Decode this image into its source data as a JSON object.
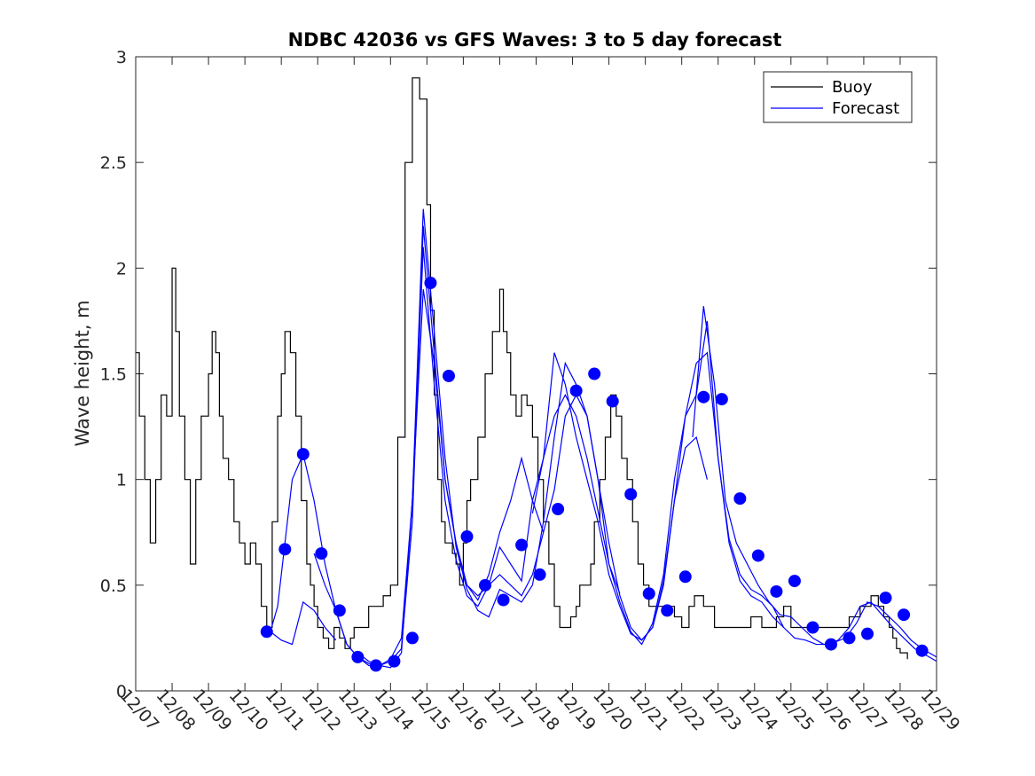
{
  "chart_data": {
    "type": "line",
    "title": "NDBC 42036 vs GFS Waves: 3 to 5 day forecast",
    "xlabel": "",
    "ylabel": "Wave height, m",
    "xlim": [
      0,
      22
    ],
    "ylim": [
      0,
      3
    ],
    "x_unit": "days since 12/07 00:00",
    "x_tick_values": [
      0,
      1,
      2,
      3,
      4,
      5,
      6,
      7,
      8,
      9,
      10,
      11,
      12,
      13,
      14,
      15,
      16,
      17,
      18,
      19,
      20,
      21,
      22
    ],
    "x_tick_labels": [
      "12/07",
      "12/08",
      "12/09",
      "12/10",
      "12/11",
      "12/12",
      "12/13",
      "12/14",
      "12/15",
      "12/16",
      "12/17",
      "12/18",
      "12/19",
      "12/20",
      "12/21",
      "12/22",
      "12/23",
      "12/24",
      "12/25",
      "12/26",
      "12/27",
      "12/28",
      "12/29"
    ],
    "y_tick_values": [
      0,
      0.5,
      1,
      1.5,
      2,
      2.5,
      3
    ],
    "y_tick_labels": [
      "0",
      "0.5",
      "1",
      "1.5",
      "2",
      "2.5",
      "3"
    ],
    "legend": {
      "position": "top-right",
      "entries": [
        {
          "label": "Buoy",
          "color": "#000000"
        },
        {
          "label": "Forecast",
          "color": "#0000ff"
        }
      ]
    },
    "colors": {
      "buoy": "#000000",
      "forecast": "#0000ff",
      "axes": "#262626"
    },
    "buoy": {
      "name": "Buoy",
      "x": [
        0,
        0.1,
        0.25,
        0.4,
        0.55,
        0.7,
        0.85,
        1.0,
        1.1,
        1.2,
        1.35,
        1.5,
        1.65,
        1.8,
        2.0,
        2.1,
        2.2,
        2.3,
        2.4,
        2.55,
        2.7,
        2.85,
        3.0,
        3.15,
        3.3,
        3.45,
        3.6,
        3.75,
        3.9,
        4.0,
        4.1,
        4.25,
        4.4,
        4.55,
        4.7,
        4.8,
        4.9,
        5.0,
        5.15,
        5.3,
        5.45,
        5.6,
        5.75,
        5.9,
        6.0,
        6.2,
        6.4,
        6.6,
        6.8,
        7.0,
        7.2,
        7.4,
        7.6,
        7.8,
        8.0,
        8.1,
        8.2,
        8.3,
        8.4,
        8.5,
        8.6,
        8.7,
        8.8,
        8.9,
        9.0,
        9.1,
        9.2,
        9.4,
        9.6,
        9.8,
        10.0,
        10.1,
        10.2,
        10.3,
        10.45,
        10.6,
        10.75,
        10.9,
        11.05,
        11.2,
        11.35,
        11.5,
        11.65,
        11.8,
        11.95,
        12.1,
        12.2,
        12.35,
        12.5,
        12.6,
        12.75,
        12.9,
        13.05,
        13.2,
        13.35,
        13.5,
        13.65,
        13.8,
        13.95,
        14.1,
        14.25,
        14.4,
        14.6,
        14.8,
        15.0,
        15.2,
        15.35,
        15.5,
        15.6,
        15.75,
        15.9,
        16.0,
        16.1,
        16.2,
        16.35,
        16.5,
        16.7,
        16.9,
        17.0,
        17.2,
        17.4,
        17.6,
        17.8,
        18.0,
        18.2,
        18.4,
        18.6,
        18.8,
        19.0,
        19.3,
        19.6,
        19.9,
        20.2,
        20.4,
        20.55,
        20.7,
        20.8,
        20.9,
        21.0,
        21.2
      ],
      "y": [
        1.6,
        1.3,
        1.0,
        0.7,
        1.0,
        1.4,
        1.3,
        2.0,
        1.7,
        1.3,
        1.0,
        0.6,
        1.0,
        1.3,
        1.5,
        1.7,
        1.6,
        1.3,
        1.1,
        1.0,
        0.8,
        0.7,
        0.6,
        0.7,
        0.6,
        0.4,
        0.3,
        0.8,
        1.3,
        1.5,
        1.7,
        1.6,
        1.3,
        0.9,
        0.6,
        0.5,
        0.4,
        0.3,
        0.25,
        0.2,
        0.3,
        0.25,
        0.2,
        0.25,
        0.3,
        0.3,
        0.4,
        0.4,
        0.45,
        0.5,
        1.2,
        2.5,
        2.9,
        2.8,
        2.3,
        1.8,
        1.4,
        1.0,
        0.8,
        0.7,
        0.7,
        0.65,
        0.6,
        0.5,
        0.7,
        0.9,
        1.0,
        1.2,
        1.5,
        1.7,
        1.9,
        1.7,
        1.6,
        1.4,
        1.3,
        1.4,
        1.35,
        1.2,
        1.0,
        0.8,
        0.6,
        0.4,
        0.3,
        0.3,
        0.35,
        0.4,
        0.5,
        0.5,
        0.6,
        0.8,
        1.0,
        1.2,
        1.4,
        1.3,
        1.1,
        1.0,
        0.8,
        0.6,
        0.5,
        0.4,
        0.4,
        0.4,
        0.4,
        0.35,
        0.3,
        0.4,
        0.45,
        0.45,
        0.4,
        0.4,
        0.3,
        0.3,
        0.3,
        0.3,
        0.3,
        0.3,
        0.3,
        0.35,
        0.35,
        0.3,
        0.3,
        0.35,
        0.4,
        0.3,
        0.3,
        0.3,
        0.3,
        0.3,
        0.3,
        0.3,
        0.35,
        0.4,
        0.45,
        0.4,
        0.35,
        0.3,
        0.25,
        0.2,
        0.18,
        0.15
      ]
    },
    "forecast_runs": [
      {
        "x": [
          3.7,
          4.0,
          4.3,
          4.6,
          4.9,
          5.2,
          5.5
        ],
        "y": [
          0.28,
          0.24,
          0.22,
          0.42,
          0.38,
          0.3,
          0.24
        ]
      },
      {
        "x": [
          3.7,
          3.9,
          4.1,
          4.3,
          4.6,
          4.9,
          5.2,
          5.5,
          5.8,
          6.1,
          6.4,
          6.7,
          7.0,
          7.3,
          7.6,
          7.9,
          8.2,
          8.5,
          8.8,
          9.1,
          9.4,
          9.7,
          10.0,
          10.3,
          10.6,
          10.9,
          11.2
        ],
        "y": [
          0.28,
          0.4,
          0.7,
          1.0,
          1.12,
          0.9,
          0.6,
          0.38,
          0.22,
          0.16,
          0.13,
          0.12,
          0.15,
          0.25,
          0.9,
          1.9,
          1.55,
          1.0,
          0.7,
          0.5,
          0.43,
          0.55,
          0.75,
          0.9,
          1.1,
          0.9,
          0.75
        ]
      },
      {
        "x": [
          4.9,
          5.2,
          5.5,
          5.8,
          6.1,
          6.4,
          6.7,
          7.0,
          7.3,
          7.6,
          7.9,
          8.2,
          8.5,
          8.8,
          9.1,
          9.4,
          9.7,
          10.0,
          10.3,
          10.6,
          10.9,
          11.2,
          11.5,
          11.8,
          12.1,
          12.4,
          12.7,
          13.0,
          13.3
        ],
        "y": [
          0.65,
          0.5,
          0.38,
          0.22,
          0.16,
          0.12,
          0.12,
          0.14,
          0.2,
          0.8,
          2.2,
          1.6,
          1.0,
          0.7,
          0.5,
          0.45,
          0.5,
          0.55,
          0.5,
          0.45,
          0.55,
          0.75,
          0.95,
          1.3,
          1.4,
          1.3,
          1.0,
          0.6,
          0.46
        ]
      },
      {
        "x": [
          6.1,
          6.4,
          6.7,
          7.0,
          7.3,
          7.6,
          7.9,
          8.2,
          8.5,
          8.8,
          9.1,
          9.4,
          9.7,
          10.0,
          10.3,
          10.6,
          10.9,
          11.2,
          11.5,
          11.8,
          12.1,
          12.4,
          12.7,
          13.0,
          13.3,
          13.6,
          13.9,
          14.2,
          14.5,
          14.8,
          15.1,
          15.4,
          15.7
        ],
        "y": [
          0.18,
          0.14,
          0.12,
          0.11,
          0.18,
          0.9,
          2.28,
          1.7,
          1.1,
          0.68,
          0.48,
          0.38,
          0.35,
          0.48,
          0.45,
          0.42,
          0.5,
          0.8,
          1.2,
          1.55,
          1.45,
          1.3,
          1.0,
          0.7,
          0.45,
          0.3,
          0.24,
          0.3,
          0.5,
          0.9,
          1.15,
          1.2,
          1.0
        ]
      },
      {
        "x": [
          7.3,
          7.6,
          7.9,
          8.2,
          8.5,
          8.8,
          9.1,
          9.4,
          9.7,
          10.0,
          10.3,
          10.6,
          10.9,
          11.2,
          11.5,
          11.8,
          12.1,
          12.4,
          12.7,
          13.0,
          13.3,
          13.6,
          13.9,
          14.2,
          14.5,
          14.8,
          15.1,
          15.4,
          15.7,
          16.0,
          16.3,
          16.6,
          16.9,
          17.2,
          17.5,
          17.8
        ],
        "y": [
          0.2,
          0.9,
          2.1,
          1.45,
          0.9,
          0.62,
          0.45,
          0.4,
          0.5,
          0.68,
          0.6,
          0.52,
          0.9,
          1.1,
          1.3,
          1.4,
          1.3,
          1.1,
          0.85,
          0.6,
          0.42,
          0.28,
          0.22,
          0.32,
          0.55,
          1.0,
          1.3,
          1.4,
          1.75,
          1.1,
          0.7,
          0.52,
          0.45,
          0.42,
          0.35,
          0.3
        ]
      },
      {
        "x": [
          10.9,
          11.2,
          11.5,
          11.8,
          12.1,
          12.4,
          12.7,
          13.0,
          13.3,
          13.6,
          13.9,
          14.2,
          14.5,
          14.8,
          15.1,
          15.4,
          15.7,
          16.0,
          16.3,
          16.6,
          16.9,
          17.2,
          17.5,
          17.8,
          18.1,
          18.4,
          18.7,
          19.0,
          19.3,
          19.6,
          19.9,
          20.2,
          20.5,
          20.8,
          21.1,
          21.4,
          21.7,
          22.0
        ],
        "y": [
          0.84,
          1.1,
          1.6,
          1.45,
          1.2,
          1.0,
          0.8,
          0.55,
          0.4,
          0.27,
          0.24,
          0.3,
          0.52,
          0.9,
          1.3,
          1.55,
          1.6,
          1.1,
          0.72,
          0.55,
          0.48,
          0.45,
          0.4,
          0.3,
          0.25,
          0.24,
          0.22,
          0.22,
          0.24,
          0.3,
          0.4,
          0.42,
          0.36,
          0.3,
          0.25,
          0.2,
          0.17,
          0.14
        ]
      },
      {
        "x": [
          15.3,
          15.6,
          15.9,
          16.2,
          16.5,
          16.8,
          17.1,
          17.4,
          17.7,
          18.0,
          18.3,
          18.6,
          18.9,
          19.2,
          19.5,
          19.8,
          20.1,
          20.4,
          20.7,
          21.0,
          21.3,
          21.6,
          21.9,
          22.0
        ],
        "y": [
          1.2,
          1.82,
          1.45,
          0.9,
          0.7,
          0.6,
          0.5,
          0.42,
          0.36,
          0.35,
          0.3,
          0.25,
          0.22,
          0.23,
          0.25,
          0.32,
          0.42,
          0.4,
          0.35,
          0.3,
          0.24,
          0.2,
          0.17,
          0.16
        ]
      }
    ],
    "forecast_markers": {
      "x": [
        3.6,
        4.1,
        4.6,
        5.1,
        5.6,
        6.1,
        6.6,
        7.1,
        7.6,
        8.1,
        8.6,
        9.1,
        9.6,
        10.1,
        10.6,
        11.1,
        11.6,
        12.1,
        12.6,
        13.1,
        13.6,
        14.1,
        14.6,
        15.1,
        15.6,
        16.1,
        16.6,
        17.1,
        17.6,
        18.1,
        18.6,
        19.1,
        19.6,
        20.1,
        20.6,
        21.1,
        21.6
      ],
      "y": [
        0.28,
        0.67,
        1.12,
        0.65,
        0.38,
        0.16,
        0.12,
        0.14,
        0.25,
        1.93,
        1.49,
        0.73,
        0.5,
        0.43,
        0.69,
        0.55,
        0.86,
        1.42,
        1.5,
        1.37,
        0.93,
        0.46,
        0.38,
        0.54,
        1.39,
        1.38,
        0.91,
        0.64,
        0.47,
        0.52,
        0.3,
        0.22,
        0.25,
        0.27,
        0.44,
        0.36,
        0.19
      ]
    }
  }
}
